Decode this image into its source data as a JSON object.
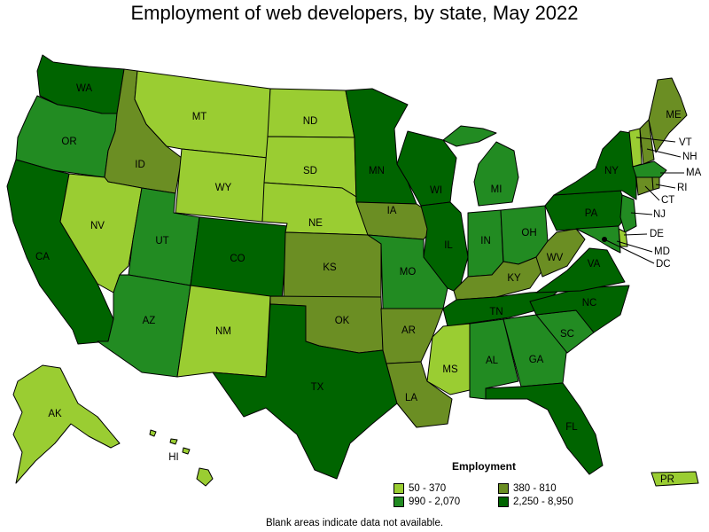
{
  "title": "Employment of web developers, by state, May 2022",
  "legend": {
    "title": "Employment",
    "bins": [
      {
        "label": "50 - 370",
        "color": "#9acd32"
      },
      {
        "label": "380 - 810",
        "color": "#6b8e23"
      },
      {
        "label": "990 - 2,070",
        "color": "#228b22"
      },
      {
        "label": "2,250 - 8,950",
        "color": "#006400"
      }
    ]
  },
  "footnote": "Blank areas indicate data not available.",
  "states": [
    {
      "abbr": "WA",
      "bin": 3
    },
    {
      "abbr": "OR",
      "bin": 2
    },
    {
      "abbr": "CA",
      "bin": 3
    },
    {
      "abbr": "ID",
      "bin": 1
    },
    {
      "abbr": "NV",
      "bin": 0
    },
    {
      "abbr": "MT",
      "bin": 0
    },
    {
      "abbr": "WY",
      "bin": 0
    },
    {
      "abbr": "UT",
      "bin": 2
    },
    {
      "abbr": "AZ",
      "bin": 2
    },
    {
      "abbr": "CO",
      "bin": 3
    },
    {
      "abbr": "NM",
      "bin": 0
    },
    {
      "abbr": "ND",
      "bin": 0
    },
    {
      "abbr": "SD",
      "bin": 0
    },
    {
      "abbr": "NE",
      "bin": 0
    },
    {
      "abbr": "KS",
      "bin": 1
    },
    {
      "abbr": "OK",
      "bin": 1
    },
    {
      "abbr": "TX",
      "bin": 3
    },
    {
      "abbr": "MN",
      "bin": 3
    },
    {
      "abbr": "IA",
      "bin": 1
    },
    {
      "abbr": "MO",
      "bin": 2
    },
    {
      "abbr": "AR",
      "bin": 1
    },
    {
      "abbr": "LA",
      "bin": 1
    },
    {
      "abbr": "WI",
      "bin": 3
    },
    {
      "abbr": "IL",
      "bin": 3
    },
    {
      "abbr": "MI",
      "bin": 2
    },
    {
      "abbr": "IN",
      "bin": 2
    },
    {
      "abbr": "OH",
      "bin": 2
    },
    {
      "abbr": "KY",
      "bin": 1
    },
    {
      "abbr": "TN",
      "bin": 3
    },
    {
      "abbr": "MS",
      "bin": 0
    },
    {
      "abbr": "AL",
      "bin": 2
    },
    {
      "abbr": "GA",
      "bin": 2
    },
    {
      "abbr": "FL",
      "bin": 3
    },
    {
      "abbr": "SC",
      "bin": 2
    },
    {
      "abbr": "NC",
      "bin": 3
    },
    {
      "abbr": "VA",
      "bin": 3
    },
    {
      "abbr": "WV",
      "bin": 1
    },
    {
      "abbr": "PA",
      "bin": 3
    },
    {
      "abbr": "NY",
      "bin": 3
    },
    {
      "abbr": "VT",
      "bin": 0
    },
    {
      "abbr": "NH",
      "bin": 1
    },
    {
      "abbr": "ME",
      "bin": 1
    },
    {
      "abbr": "MA",
      "bin": 2
    },
    {
      "abbr": "RI",
      "bin": 1
    },
    {
      "abbr": "CT",
      "bin": 1
    },
    {
      "abbr": "NJ",
      "bin": 2
    },
    {
      "abbr": "DE",
      "bin": 0
    },
    {
      "abbr": "MD",
      "bin": 2
    },
    {
      "abbr": "DC",
      "bin": 3
    },
    {
      "abbr": "AK",
      "bin": 0
    },
    {
      "abbr": "HI",
      "bin": 0
    },
    {
      "abbr": "PR",
      "bin": 0
    }
  ]
}
